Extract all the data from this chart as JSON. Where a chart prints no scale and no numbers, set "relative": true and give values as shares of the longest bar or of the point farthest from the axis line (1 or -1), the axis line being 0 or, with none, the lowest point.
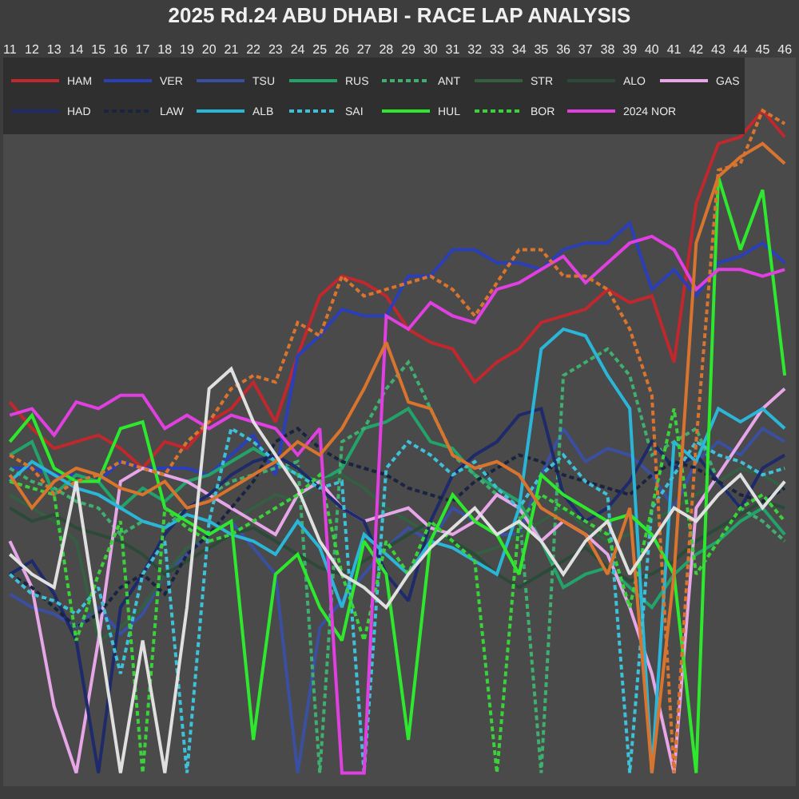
{
  "chart_data": {
    "type": "line",
    "title": "2025 Rd.24 ABU DHABI - RACE LAP ANALYSIS",
    "relative": true,
    "x": [
      11,
      12,
      13,
      14,
      15,
      16,
      17,
      18,
      19,
      20,
      21,
      22,
      23,
      24,
      25,
      26,
      27,
      28,
      29,
      30,
      31,
      32,
      33,
      34,
      35,
      36,
      37,
      38,
      39,
      40,
      41,
      42,
      43,
      44,
      45,
      46
    ],
    "xlim": [
      10.7,
      46.5
    ],
    "xticks": [
      11,
      12,
      13,
      14,
      15,
      16,
      17,
      18,
      19,
      20,
      21,
      22,
      23,
      24,
      25,
      26,
      27,
      28,
      29,
      30,
      31,
      32,
      33,
      34,
      35,
      36,
      37,
      38,
      39,
      40,
      41,
      42,
      43,
      44,
      45,
      46
    ],
    "grid": false,
    "legend": "top left",
    "marker": "none",
    "tick_labels": "x",
    "series": [
      {
        "name": "HAM",
        "color": "#c0282e",
        "line_style": "solid",
        "values": [
          0.56,
          0.52,
          0.49,
          0.5,
          0.51,
          0.49,
          0.46,
          0.5,
          0.49,
          0.53,
          0.55,
          0.59,
          0.53,
          0.63,
          0.72,
          0.75,
          0.74,
          0.72,
          0.67,
          0.65,
          0.64,
          0.59,
          0.62,
          0.64,
          0.68,
          0.69,
          0.7,
          0.73,
          0.71,
          0.72,
          0.62,
          0.86,
          0.95,
          0.96,
          1.0,
          0.96
        ]
      },
      {
        "name": "VER",
        "color": "#2a3fb8",
        "line_style": "solid",
        "values": [
          0.46,
          0.46,
          0.45,
          0.45,
          0.44,
          0.47,
          0.46,
          0.46,
          0.46,
          0.45,
          0.48,
          0.51,
          0.45,
          0.63,
          0.66,
          0.7,
          0.69,
          0.69,
          0.75,
          0.75,
          0.79,
          0.79,
          0.77,
          0.77,
          0.76,
          0.79,
          0.8,
          0.8,
          0.83,
          0.73,
          0.76,
          0.72,
          0.77,
          0.78,
          0.8,
          0.77
        ]
      },
      {
        "name": "TSU",
        "color": "#3b4fa0",
        "line_style": "solid",
        "values": [
          0.27,
          0.25,
          0.24,
          0.22,
          0.25,
          0.21,
          0.24,
          0.3,
          0.33,
          0.36,
          0.38,
          0.34,
          0.3,
          0.0,
          0.22,
          0.26,
          0.3,
          0.34,
          0.37,
          0.35,
          0.4,
          0.38,
          0.36,
          0.36,
          0.45,
          0.52,
          0.47,
          0.49,
          0.48,
          0.45,
          0.4,
          0.47,
          0.5,
          0.48,
          0.52,
          0.5
        ]
      },
      {
        "name": "RUS",
        "color": "#22a36a",
        "line_style": "solid",
        "values": [
          0.48,
          0.5,
          0.42,
          0.45,
          0.44,
          0.4,
          0.43,
          0.41,
          0.44,
          0.45,
          0.47,
          0.49,
          0.47,
          0.45,
          0.44,
          0.46,
          0.52,
          0.53,
          0.55,
          0.5,
          0.49,
          0.45,
          0.43,
          0.41,
          0.35,
          0.28,
          0.3,
          0.31,
          0.28,
          0.25,
          0.3,
          0.33,
          0.35,
          0.38,
          0.4,
          0.36
        ]
      },
      {
        "name": "ANT",
        "color": "#3fae6e",
        "line_style": "dashed",
        "values": [
          0.46,
          0.44,
          0.43,
          0.41,
          0.4,
          0.36,
          0.38,
          0.37,
          0.4,
          0.42,
          0.44,
          0.45,
          0.46,
          0.47,
          0.0,
          0.5,
          0.52,
          0.58,
          0.62,
          0.55,
          0.48,
          0.45,
          0.42,
          0.4,
          0.0,
          0.6,
          0.62,
          0.64,
          0.6,
          0.48,
          0.5,
          0.52,
          0.44,
          0.4,
          0.38,
          0.35
        ]
      },
      {
        "name": "STR",
        "color": "#355e42",
        "line_style": "solid",
        "values": [
          0.42,
          0.4,
          0.38,
          0.35,
          0.2,
          0.22,
          0.25,
          0.3,
          0.34,
          0.36,
          0.38,
          0.4,
          0.42,
          0.41,
          0.44,
          0.45,
          0.43,
          0.4,
          0.38,
          0.36,
          0.35,
          0.33,
          0.34,
          0.36,
          0.38,
          0.4,
          0.37,
          0.35,
          0.36,
          0.38,
          0.4,
          0.42,
          0.44,
          0.46,
          0.45,
          0.43
        ]
      },
      {
        "name": "ALO",
        "color": "#2b4a38",
        "line_style": "solid",
        "values": [
          0.4,
          0.38,
          0.39,
          0.37,
          0.36,
          0.35,
          0.33,
          0.3,
          0.32,
          0.34,
          0.36,
          0.37,
          0.35,
          0.33,
          0.31,
          0.3,
          0.32,
          0.34,
          0.36,
          0.38,
          0.35,
          0.33,
          0.3,
          0.28,
          0.3,
          0.32,
          0.34,
          0.31,
          0.29,
          0.3,
          0.32,
          0.35,
          0.37,
          0.39,
          0.41,
          0.4
        ]
      },
      {
        "name": "GAS",
        "color": "#e6a6e8",
        "line_style": "solid",
        "values": [
          0.35,
          0.28,
          0.1,
          0.0,
          0.2,
          0.44,
          0.46,
          0.45,
          0.44,
          0.42,
          0.4,
          0.38,
          0.36,
          0.42,
          0.44,
          0.4,
          0.38,
          0.39,
          0.4,
          0.37,
          0.36,
          0.38,
          0.42,
          0.4,
          0.35,
          0.38,
          0.36,
          0.33,
          0.25,
          0.15,
          0.0,
          0.4,
          0.45,
          0.5,
          0.55,
          0.58
        ]
      },
      {
        "name": "HAD",
        "color": "#1e2a6a",
        "line_style": "solid",
        "values": [
          0.3,
          0.32,
          0.27,
          0.2,
          0.0,
          0.25,
          0.3,
          0.36,
          0.4,
          0.42,
          0.45,
          0.47,
          0.48,
          0.46,
          0.43,
          0.4,
          0.38,
          0.3,
          0.26,
          0.38,
          0.45,
          0.48,
          0.5,
          0.54,
          0.55,
          0.42,
          0.38,
          0.4,
          0.44,
          0.5,
          0.46,
          0.48,
          0.44,
          0.4,
          0.46,
          0.48
        ]
      },
      {
        "name": "LAW",
        "color": "#1a2440",
        "line_style": "dashed",
        "values": [
          0.3,
          0.28,
          0.25,
          0.22,
          0.24,
          0.28,
          0.3,
          0.27,
          0.33,
          0.36,
          0.4,
          0.44,
          0.5,
          0.52,
          0.49,
          0.47,
          0.46,
          0.45,
          0.43,
          0.42,
          0.41,
          0.44,
          0.46,
          0.48,
          0.47,
          0.45,
          0.44,
          0.43,
          0.42,
          0.45,
          0.47,
          0.46,
          0.44,
          0.42,
          0.41,
          0.43
        ]
      },
      {
        "name": "ALB",
        "color": "#2bb5d6",
        "line_style": "solid",
        "values": [
          0.44,
          0.47,
          0.45,
          0.43,
          0.42,
          0.4,
          0.38,
          0.37,
          0.39,
          0.38,
          0.36,
          0.35,
          0.33,
          0.38,
          0.34,
          0.25,
          0.36,
          0.33,
          0.3,
          0.35,
          0.34,
          0.32,
          0.3,
          0.4,
          0.64,
          0.67,
          0.66,
          0.6,
          0.55,
          0.0,
          0.5,
          0.47,
          0.55,
          0.53,
          0.55,
          0.52
        ]
      },
      {
        "name": "SAI",
        "color": "#3ec0d8",
        "line_style": "dashed",
        "values": [
          0.3,
          0.27,
          0.26,
          0.24,
          0.28,
          0.15,
          0.3,
          0.35,
          0.0,
          0.38,
          0.52,
          0.5,
          0.47,
          0.45,
          0.43,
          0.44,
          0.0,
          0.46,
          0.5,
          0.48,
          0.45,
          0.47,
          0.43,
          0.4,
          0.45,
          0.48,
          0.44,
          0.42,
          0.0,
          0.4,
          0.45,
          0.5,
          0.48,
          0.47,
          0.45,
          0.46
        ]
      },
      {
        "name": "HUL",
        "color": "#2ee82e",
        "line_style": "solid",
        "values": [
          0.5,
          0.54,
          0.46,
          0.44,
          0.44,
          0.52,
          0.53,
          0.4,
          0.38,
          0.36,
          0.38,
          0.05,
          0.3,
          0.33,
          0.25,
          0.2,
          0.35,
          0.3,
          0.05,
          0.35,
          0.42,
          0.38,
          0.36,
          0.3,
          0.45,
          0.42,
          0.4,
          0.38,
          0.39,
          0.36,
          0.3,
          0.0,
          0.9,
          0.79,
          0.88,
          0.6
        ]
      },
      {
        "name": "BOR",
        "color": "#3ad13a",
        "line_style": "dashed",
        "values": [
          0.44,
          0.43,
          0.42,
          0.2,
          0.3,
          0.38,
          0.0,
          0.4,
          0.37,
          0.35,
          0.36,
          0.38,
          0.4,
          0.42,
          0.45,
          0.3,
          0.2,
          0.35,
          0.3,
          0.38,
          0.35,
          0.32,
          0.0,
          0.38,
          0.42,
          0.4,
          0.38,
          0.36,
          0.25,
          0.4,
          0.55,
          0.3,
          0.35,
          0.4,
          0.42,
          0.38
        ]
      },
      {
        "name": "2024 NOR",
        "color": "#e040e0",
        "line_style": "solid",
        "values": [
          0.54,
          0.55,
          0.51,
          0.56,
          0.55,
          0.57,
          0.57,
          0.52,
          0.54,
          0.52,
          0.54,
          0.53,
          0.52,
          0.48,
          0.52,
          0.0,
          0.0,
          0.69,
          0.67,
          0.71,
          0.69,
          0.68,
          0.73,
          0.74,
          0.76,
          0.78,
          0.74,
          0.77,
          0.8,
          0.81,
          0.79,
          0.73,
          0.76,
          0.76,
          0.75,
          0.76
        ]
      },
      {
        "color": "#d9742e",
        "line_style": "solid",
        "values": [
          0.45,
          0.4,
          0.44,
          0.46,
          0.45,
          0.43,
          0.42,
          0.44,
          0.4,
          0.41,
          0.43,
          0.45,
          0.47,
          0.5,
          0.48,
          0.52,
          0.58,
          0.65,
          0.56,
          0.55,
          0.48,
          0.46,
          0.47,
          0.45,
          0.4,
          0.38,
          0.36,
          0.3,
          0.4,
          0.0,
          0.3,
          0.8,
          0.9,
          0.93,
          0.95,
          0.92
        ]
      },
      {
        "color": "#d9742e",
        "line_style": "dashed",
        "values": [
          0.48,
          0.46,
          0.42,
          0.44,
          0.45,
          0.47,
          0.46,
          0.45,
          0.5,
          0.53,
          0.58,
          0.6,
          0.59,
          0.68,
          0.66,
          0.75,
          0.72,
          0.73,
          0.74,
          0.75,
          0.73,
          0.69,
          0.74,
          0.79,
          0.79,
          0.75,
          0.75,
          0.73,
          0.67,
          0.57,
          0.0,
          0.5,
          0.91,
          0.92,
          1.0,
          0.98
        ]
      },
      {
        "color": "#e0e0e0",
        "line_style": "solid",
        "values": [
          0.33,
          0.3,
          0.28,
          0.44,
          0.22,
          0.0,
          0.2,
          0.0,
          0.25,
          0.58,
          0.61,
          0.53,
          0.48,
          0.43,
          0.35,
          0.3,
          0.28,
          0.25,
          0.3,
          0.34,
          0.37,
          0.4,
          0.36,
          0.38,
          0.35,
          0.3,
          0.35,
          0.38,
          0.3,
          0.35,
          0.4,
          0.38,
          0.42,
          0.45,
          0.4,
          0.44
        ]
      }
    ]
  }
}
